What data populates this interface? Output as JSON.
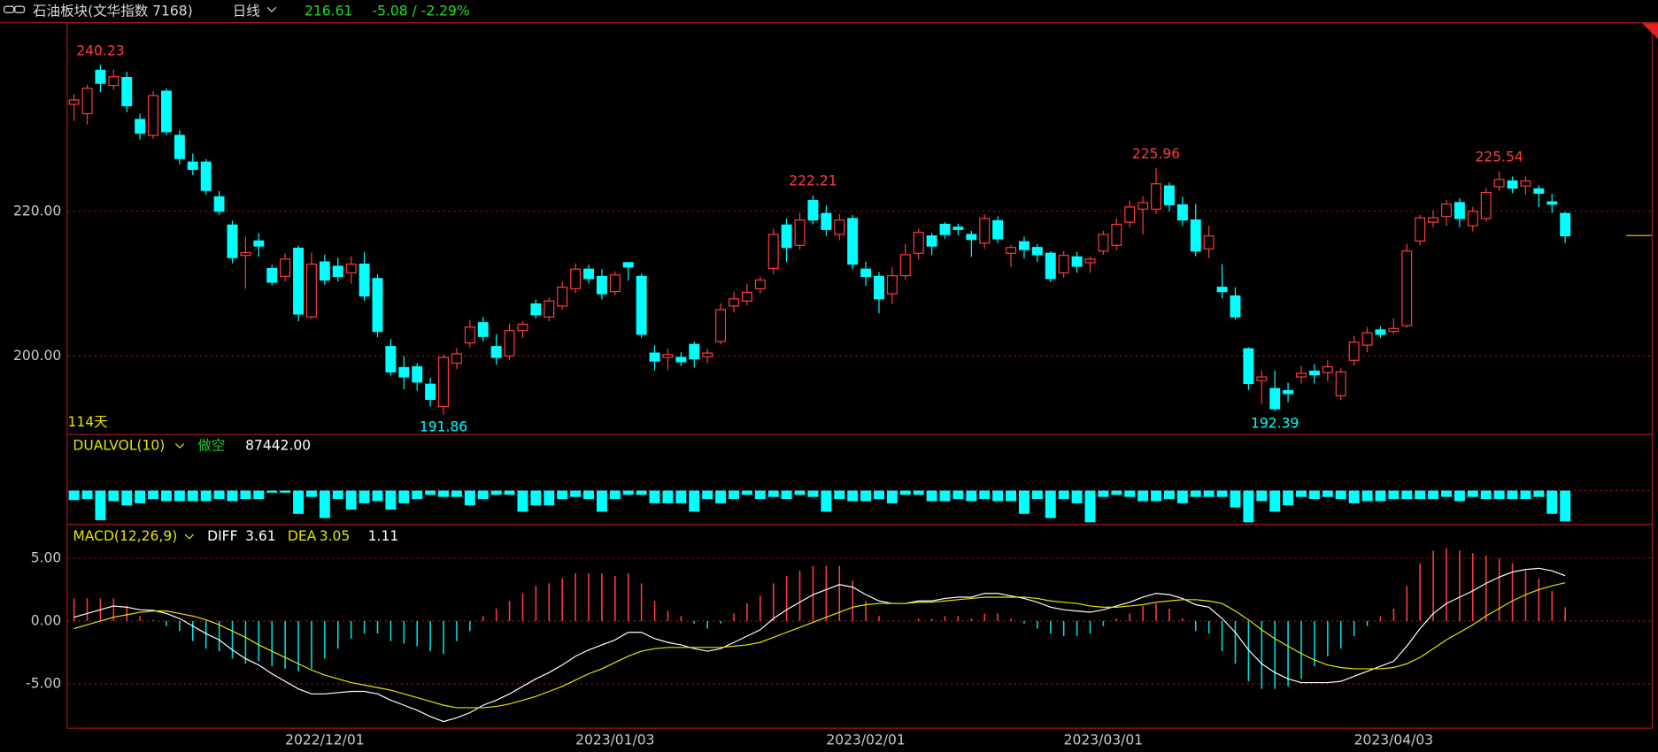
{
  "header": {
    "title": "石油板块(文华指数 7168)",
    "period": "日线",
    "change": "-5.08 / -2.29%"
  },
  "chart_data": [
    {
      "type": "candlestick",
      "days_label": "114天",
      "up_color": "#ff3c3c",
      "down_color": "#00ffff",
      "grid": true,
      "ylim": [
        189.2,
        246.0
      ],
      "yticks": [
        {
          "value": 200,
          "label": "200.00"
        },
        {
          "value": 220,
          "label": "220.00"
        }
      ],
      "categories": [
        null,
        null,
        null,
        null,
        null,
        null,
        null,
        null,
        null,
        null,
        null,
        null,
        null,
        null,
        null,
        null,
        null,
        null,
        null,
        "2022/12/01",
        null,
        null,
        null,
        null,
        null,
        null,
        null,
        null,
        null,
        null,
        null,
        null,
        null,
        null,
        null,
        null,
        null,
        null,
        null,
        null,
        null,
        "2023/01/03",
        null,
        null,
        null,
        null,
        null,
        null,
        null,
        null,
        null,
        null,
        null,
        null,
        null,
        null,
        null,
        null,
        null,
        null,
        "2023/02/01",
        null,
        null,
        null,
        null,
        null,
        null,
        null,
        null,
        null,
        null,
        null,
        null,
        null,
        null,
        null,
        null,
        null,
        "2023/03/01",
        null,
        null,
        null,
        null,
        null,
        null,
        null,
        null,
        null,
        null,
        null,
        null,
        null,
        null,
        null,
        null,
        null,
        null,
        null,
        null,
        null,
        "2023/04/03",
        null,
        null,
        null,
        null,
        null,
        null,
        null,
        null,
        null,
        null,
        null,
        null,
        null
      ],
      "open": [
        234.8,
        233.5,
        239.5,
        237.4,
        238.5,
        232.7,
        230.5,
        236.6,
        230.5,
        226.8,
        226.8,
        222.0,
        218.1,
        213.9,
        215.9,
        212.1,
        211.0,
        214.9,
        205.4,
        213.0,
        212.4,
        211.5,
        212.7,
        210.7,
        201.3,
        198.4,
        198.5,
        196.1,
        193.0,
        199.0,
        201.8,
        204.6,
        201.3,
        200.0,
        203.5,
        207.2,
        205.4,
        206.9,
        209.3,
        212.0,
        211.0,
        208.9,
        212.9,
        211.0,
        200.4,
        199.8,
        199.8,
        201.6,
        199.9,
        202.0,
        206.9,
        207.6,
        209.3,
        212.1,
        218.1,
        215.3,
        221.5,
        219.7,
        216.8,
        219.0,
        212.0,
        211.0,
        208.6,
        211.1,
        214.2,
        216.6,
        218.2,
        217.8,
        216.8,
        215.6,
        218.7,
        214.2,
        215.8,
        215.0,
        214.2,
        211.5,
        213.7,
        212.9,
        214.5,
        215.3,
        218.5,
        220.3,
        220.3,
        223.5,
        220.9,
        218.8,
        214.8,
        209.5,
        208.3,
        201.0,
        196.6,
        195.5,
        195.2,
        197.1,
        197.9,
        197.7,
        194.5,
        199.4,
        201.5,
        203.6,
        203.4,
        204.2,
        215.9,
        218.5,
        219.3,
        221.2,
        218.0,
        219.0,
        223.4,
        224.2,
        223.5,
        223.1,
        221.3,
        219.7
      ],
      "high": [
        236.2,
        237.5,
        240.23,
        239.6,
        239.3,
        233.5,
        236.6,
        237.0,
        231.2,
        228.0,
        227.2,
        222.8,
        218.7,
        216.5,
        217.0,
        212.6,
        214.2,
        215.3,
        214.3,
        214.0,
        213.6,
        213.8,
        214.4,
        211.3,
        202.3,
        200.0,
        199.0,
        197.0,
        200.2,
        201.1,
        205.0,
        205.4,
        203.0,
        204.5,
        204.8,
        207.8,
        208.1,
        210.3,
        212.8,
        212.6,
        212.0,
        211.7,
        213.0,
        211.4,
        201.5,
        201.0,
        200.5,
        202.0,
        201.0,
        207.3,
        208.9,
        210.0,
        211.0,
        217.6,
        219.0,
        219.8,
        222.21,
        220.8,
        219.6,
        219.5,
        213.0,
        211.6,
        212.3,
        215.5,
        217.6,
        217.0,
        218.5,
        218.3,
        217.3,
        219.6,
        219.3,
        215.3,
        216.5,
        215.5,
        214.5,
        214.5,
        214.4,
        213.8,
        217.3,
        219.0,
        221.5,
        222.1,
        225.96,
        224.0,
        222.0,
        221.0,
        218.0,
        212.7,
        209.5,
        201.2,
        198.0,
        198.0,
        196.3,
        198.6,
        198.9,
        199.4,
        198.3,
        202.8,
        204.0,
        204.1,
        205.2,
        215.5,
        219.5,
        220.1,
        221.6,
        221.8,
        220.6,
        223.2,
        225.54,
        224.8,
        224.8,
        223.6,
        222.4,
        219.9
      ],
      "low": [
        232.5,
        232.0,
        236.5,
        236.8,
        233.7,
        229.9,
        230.0,
        230.5,
        226.5,
        225.0,
        222.3,
        219.5,
        212.8,
        209.3,
        213.7,
        209.8,
        210.3,
        204.8,
        205.1,
        209.8,
        210.3,
        210.0,
        207.6,
        202.6,
        197.3,
        195.4,
        195.2,
        193.0,
        191.86,
        198.2,
        201.2,
        202.0,
        198.8,
        199.5,
        202.5,
        205.2,
        204.8,
        206.4,
        208.7,
        210.0,
        207.8,
        208.4,
        210.4,
        202.5,
        198.0,
        198.0,
        198.6,
        198.4,
        199.0,
        201.6,
        206.0,
        207.0,
        208.6,
        211.3,
        213.0,
        214.7,
        218.2,
        216.6,
        216.0,
        212.0,
        209.7,
        205.9,
        207.2,
        210.5,
        213.3,
        214.0,
        216.2,
        216.7,
        213.7,
        214.8,
        215.6,
        212.3,
        213.5,
        213.0,
        210.2,
        210.8,
        211.5,
        211.5,
        214.0,
        214.6,
        217.8,
        216.8,
        219.6,
        220.0,
        218.0,
        213.8,
        213.5,
        208.0,
        205.0,
        195.3,
        193.4,
        192.39,
        193.6,
        196.2,
        196.2,
        196.5,
        193.9,
        198.7,
        200.5,
        202.5,
        203.0,
        203.9,
        215.3,
        217.8,
        218.0,
        217.8,
        217.2,
        218.6,
        222.8,
        222.5,
        222.3,
        220.6,
        219.8,
        215.6
      ],
      "close": [
        235.4,
        237.0,
        237.7,
        238.6,
        234.6,
        230.8,
        236.0,
        231.0,
        227.3,
        225.8,
        222.9,
        220.0,
        213.6,
        214.3,
        215.2,
        210.2,
        213.4,
        205.8,
        212.7,
        210.5,
        211.0,
        212.7,
        208.3,
        203.4,
        197.8,
        197.1,
        196.4,
        194.0,
        199.8,
        200.3,
        204.0,
        202.7,
        199.8,
        203.5,
        204.4,
        205.7,
        207.6,
        209.5,
        212.0,
        210.7,
        208.6,
        211.2,
        212.3,
        203.0,
        199.3,
        200.2,
        199.2,
        199.6,
        200.4,
        206.4,
        207.9,
        208.8,
        210.5,
        216.8,
        215.0,
        218.8,
        218.8,
        217.5,
        218.8,
        212.7,
        211.0,
        207.9,
        211.1,
        214.0,
        217.1,
        215.2,
        216.8,
        217.5,
        216.1,
        219.0,
        216.2,
        215.0,
        214.7,
        214.0,
        210.7,
        213.9,
        212.4,
        213.4,
        216.8,
        218.2,
        220.6,
        221.2,
        223.8,
        220.9,
        218.8,
        214.5,
        216.6,
        208.9,
        205.4,
        196.2,
        197.1,
        192.7,
        194.8,
        197.6,
        197.4,
        198.5,
        197.8,
        201.9,
        203.2,
        203.0,
        203.8,
        214.5,
        219.1,
        219.1,
        221.0,
        219.0,
        220.0,
        222.6,
        224.4,
        223.2,
        224.2,
        222.5,
        221.0,
        216.61
      ]
    },
    {
      "type": "bar",
      "title": "DUALVOL(10)",
      "mode": "做空",
      "color": "#00ffff",
      "mode_color": "#22cc22",
      "values": [
        27000,
        24000,
        84000,
        30000,
        42000,
        36000,
        24000,
        30000,
        30000,
        30000,
        30000,
        24000,
        30000,
        24000,
        24000,
        6000,
        6000,
        66000,
        18000,
        78000,
        24000,
        54000,
        36000,
        30000,
        54000,
        36000,
        24000,
        12000,
        18000,
        18000,
        42000,
        24000,
        12000,
        12000,
        60000,
        42000,
        42000,
        24000,
        18000,
        24000,
        60000,
        24000,
        12000,
        12000,
        36000,
        36000,
        36000,
        60000,
        24000,
        36000,
        24000,
        12000,
        24000,
        18000,
        24000,
        12000,
        18000,
        60000,
        24000,
        30000,
        30000,
        24000,
        36000,
        12000,
        12000,
        30000,
        30000,
        24000,
        30000,
        24000,
        30000,
        30000,
        66000,
        24000,
        78000,
        24000,
        36000,
        90000,
        18000,
        12000,
        18000,
        30000,
        30000,
        24000,
        36000,
        18000,
        18000,
        18000,
        48000,
        90000,
        30000,
        60000,
        42000,
        18000,
        24000,
        18000,
        24000,
        36000,
        30000,
        30000,
        24000,
        24000,
        24000,
        24000,
        18000,
        30000,
        18000,
        24000,
        24000,
        24000,
        24000,
        18000,
        66000,
        87442
      ],
      "value_labels": [
        null,
        null,
        null,
        null,
        null,
        null,
        null,
        null,
        null,
        null,
        null,
        null,
        null,
        null,
        null,
        null,
        null,
        null,
        null,
        null,
        null,
        null,
        null,
        null,
        null,
        null,
        null,
        null,
        null,
        null,
        null,
        null,
        null,
        null,
        null,
        null,
        null,
        null,
        null,
        null,
        null,
        null,
        null,
        null,
        null,
        null,
        null,
        null,
        null,
        null,
        null,
        null,
        null,
        null,
        null,
        null,
        null,
        null,
        null,
        null,
        null,
        null,
        null,
        null,
        null,
        null,
        null,
        null,
        null,
        null,
        null,
        null,
        null,
        null,
        null,
        null,
        null,
        null,
        null,
        null,
        null,
        null,
        null,
        null,
        null,
        null,
        null,
        null,
        null,
        null,
        null,
        null,
        null,
        null,
        null,
        null,
        null,
        null,
        null,
        null,
        null,
        null,
        null,
        null,
        null,
        null,
        null,
        null,
        null,
        null,
        null,
        null,
        null,
        "87442.00"
      ]
    },
    {
      "type": "line",
      "title": "MACD(12,26,9)",
      "grid": true,
      "up_color": "#ff3c3c",
      "down_color": "#00e0e0",
      "ylim": [
        -8.49,
        7.65
      ],
      "yticks": [
        {
          "value": 5,
          "label": "5.00"
        },
        {
          "value": 0,
          "label": "0.00"
        },
        {
          "value": -5,
          "label": "-5.00"
        }
      ],
      "series": [
        {
          "name": "DIFF",
          "color": "#ffffff",
          "values": [
            0.3,
            0.6,
            0.9,
            1.2,
            1.1,
            0.9,
            0.85,
            0.6,
            0.2,
            -0.4,
            -1.0,
            -1.5,
            -2.3,
            -3.0,
            -3.5,
            -4.2,
            -4.8,
            -5.4,
            -5.8,
            -5.8,
            -5.7,
            -5.6,
            -5.6,
            -5.8,
            -6.3,
            -6.7,
            -7.1,
            -7.6,
            -8.0,
            -7.7,
            -7.3,
            -6.7,
            -6.3,
            -5.8,
            -5.2,
            -4.6,
            -4.1,
            -3.5,
            -2.8,
            -2.3,
            -1.9,
            -1.5,
            -0.9,
            -0.9,
            -1.4,
            -1.7,
            -1.9,
            -2.2,
            -2.4,
            -2.2,
            -1.7,
            -1.2,
            -0.7,
            0.2,
            0.9,
            1.5,
            2.1,
            2.5,
            2.9,
            2.7,
            2.1,
            1.6,
            1.4,
            1.4,
            1.6,
            1.6,
            1.8,
            1.9,
            1.9,
            2.2,
            2.2,
            2.0,
            1.8,
            1.5,
            1.1,
            0.9,
            0.8,
            0.7,
            0.9,
            1.2,
            1.5,
            1.9,
            2.2,
            2.1,
            1.8,
            1.3,
            1.1,
            0.2,
            -0.9,
            -2.3,
            -3.4,
            -4.1,
            -4.6,
            -4.9,
            -4.9,
            -4.9,
            -4.8,
            -4.4,
            -4.0,
            -3.6,
            -3.2,
            -2.0,
            -0.6,
            0.6,
            1.4,
            1.9,
            2.4,
            3.0,
            3.5,
            3.9,
            4.1,
            4.2,
            4.0,
            3.61
          ]
        },
        {
          "name": "DEA",
          "color": "#e5e500",
          "values": [
            -0.6,
            -0.3,
            0.0,
            0.3,
            0.5,
            0.7,
            0.8,
            0.8,
            0.6,
            0.4,
            0.1,
            -0.3,
            -0.8,
            -1.3,
            -1.9,
            -2.4,
            -2.9,
            -3.4,
            -3.9,
            -4.3,
            -4.6,
            -4.9,
            -5.1,
            -5.3,
            -5.5,
            -5.8,
            -6.1,
            -6.4,
            -6.7,
            -6.9,
            -6.9,
            -6.9,
            -6.8,
            -6.6,
            -6.3,
            -6.0,
            -5.6,
            -5.2,
            -4.7,
            -4.2,
            -3.8,
            -3.3,
            -2.8,
            -2.4,
            -2.2,
            -2.1,
            -2.1,
            -2.1,
            -2.1,
            -2.1,
            -2.0,
            -1.9,
            -1.7,
            -1.3,
            -0.9,
            -0.5,
            -0.1,
            0.3,
            0.7,
            1.1,
            1.3,
            1.4,
            1.4,
            1.4,
            1.5,
            1.5,
            1.6,
            1.7,
            1.8,
            1.9,
            1.9,
            1.9,
            1.9,
            1.8,
            1.6,
            1.5,
            1.4,
            1.2,
            1.1,
            1.1,
            1.2,
            1.3,
            1.5,
            1.6,
            1.7,
            1.7,
            1.6,
            1.4,
            0.8,
            0.1,
            -0.7,
            -1.4,
            -2.0,
            -2.6,
            -3.1,
            -3.5,
            -3.7,
            -3.8,
            -3.8,
            -3.8,
            -3.7,
            -3.4,
            -2.9,
            -2.2,
            -1.5,
            -0.9,
            -0.3,
            0.4,
            1.0,
            1.6,
            2.1,
            2.5,
            2.8,
            3.05
          ]
        }
      ],
      "histogram_values": [
        1.8,
        1.8,
        1.8,
        1.8,
        1.2,
        0.4,
        0.1,
        -0.4,
        -0.8,
        -1.6,
        -2.2,
        -2.4,
        -3.0,
        -3.4,
        -3.2,
        -3.6,
        -3.8,
        -4.0,
        -3.8,
        -3.0,
        -2.2,
        -1.4,
        -1.0,
        -1.0,
        -1.6,
        -1.8,
        -2.0,
        -2.4,
        -2.6,
        -1.6,
        -0.8,
        0.4,
        1.0,
        1.6,
        2.2,
        2.8,
        3.0,
        3.4,
        3.8,
        3.8,
        3.8,
        3.6,
        3.8,
        3.0,
        1.6,
        0.8,
        0.4,
        -0.2,
        -0.6,
        -0.2,
        0.6,
        1.4,
        2.0,
        3.0,
        3.6,
        4.0,
        4.4,
        4.4,
        4.4,
        3.2,
        1.6,
        0.4,
        0.0,
        0.0,
        0.2,
        0.2,
        0.4,
        0.4,
        0.2,
        0.6,
        0.6,
        0.2,
        -0.2,
        -0.6,
        -1.0,
        -1.2,
        -1.2,
        -1.0,
        -0.4,
        0.2,
        0.6,
        1.2,
        1.4,
        1.0,
        0.2,
        -0.8,
        -1.0,
        -2.4,
        -3.4,
        -4.8,
        -5.4,
        -5.4,
        -5.2,
        -4.6,
        -3.6,
        -2.8,
        -2.2,
        -1.2,
        -0.4,
        0.4,
        1.0,
        2.8,
        4.6,
        5.6,
        5.8,
        5.6,
        5.4,
        5.2,
        5.0,
        4.6,
        4.0,
        3.4,
        2.4,
        1.11
      ]
    }
  ]
}
